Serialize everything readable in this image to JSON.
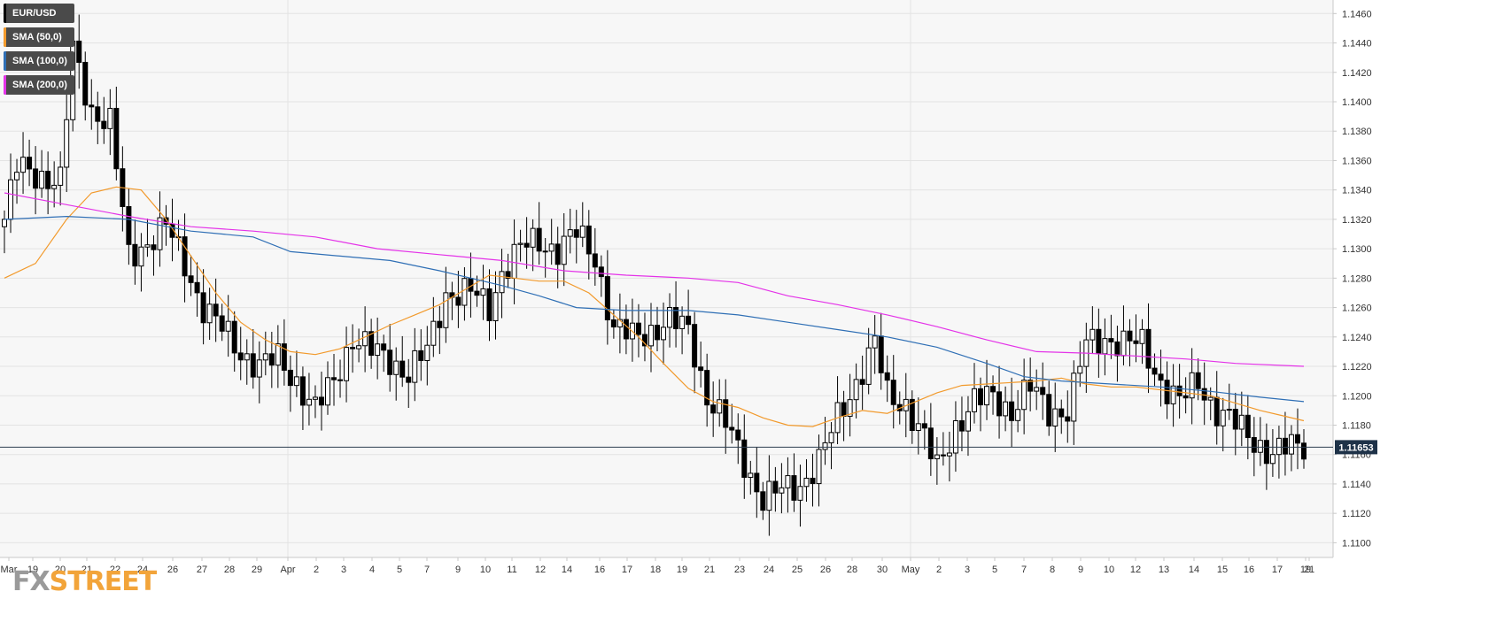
{
  "chart_data": {
    "type": "candlestick",
    "symbol": "EUR/USD",
    "title": "EUR/USD",
    "ylim": [
      1.109,
      1.1465
    ],
    "y_ticks": [
      "1.1460",
      "1.1440",
      "1.1420",
      "1.1400",
      "1.1380",
      "1.1360",
      "1.1340",
      "1.1320",
      "1.1300",
      "1.1280",
      "1.1260",
      "1.1240",
      "1.1220",
      "1.1200",
      "1.1180",
      "1.1160",
      "1.1140",
      "1.1120",
      "1.1100"
    ],
    "x_ticks": [
      "Mar",
      "19",
      "20",
      "21",
      "22",
      "24",
      "26",
      "27",
      "28",
      "29",
      "Apr",
      "2",
      "3",
      "4",
      "5",
      "7",
      "9",
      "10",
      "11",
      "12",
      "14",
      "16",
      "17",
      "18",
      "19",
      "21",
      "23",
      "24",
      "25",
      "26",
      "28",
      "30",
      "May",
      "2",
      "3",
      "5",
      "7",
      "8",
      "9",
      "10",
      "12",
      "13",
      "14",
      "15",
      "16",
      "17",
      "19",
      "21"
    ],
    "current_price": 1.1165,
    "current_price_label": "1.11653",
    "series": [
      {
        "name": "EUR/USD",
        "color": "#000000",
        "anchors": [
          [
            0,
            1.132
          ],
          [
            2,
            1.1355
          ],
          [
            6,
            1.135
          ],
          [
            9,
            1.1345
          ],
          [
            11,
            1.1435
          ],
          [
            14,
            1.1395
          ],
          [
            17,
            1.1385
          ],
          [
            20,
            1.1295
          ],
          [
            23,
            1.1305
          ],
          [
            26,
            1.1315
          ],
          [
            29,
            1.129
          ],
          [
            32,
            1.126
          ],
          [
            35,
            1.1245
          ],
          [
            38,
            1.123
          ],
          [
            41,
            1.122
          ],
          [
            44,
            1.1225
          ],
          [
            47,
            1.121
          ],
          [
            50,
            1.119
          ],
          [
            53,
            1.121
          ],
          [
            56,
            1.124
          ],
          [
            59,
            1.123
          ],
          [
            62,
            1.1225
          ],
          [
            65,
            1.1215
          ],
          [
            68,
            1.123
          ],
          [
            71,
            1.127
          ],
          [
            75,
            1.127
          ],
          [
            78,
            1.126
          ],
          [
            80,
            1.1285
          ],
          [
            83,
            1.13
          ],
          [
            86,
            1.1305
          ],
          [
            89,
            1.13
          ],
          [
            92,
            1.131
          ],
          [
            95,
            1.1295
          ],
          [
            98,
            1.1245
          ],
          [
            101,
            1.124
          ],
          [
            104,
            1.1245
          ],
          [
            107,
            1.125
          ],
          [
            110,
            1.1245
          ],
          [
            113,
            1.12
          ],
          [
            116,
            1.118
          ],
          [
            119,
            1.1155
          ],
          [
            122,
            1.113
          ],
          [
            125,
            1.1135
          ],
          [
            128,
            1.114
          ],
          [
            131,
            1.1155
          ],
          [
            134,
            1.1185
          ],
          [
            137,
            1.121
          ],
          [
            140,
            1.1235
          ],
          [
            142,
            1.12
          ],
          [
            145,
            1.1195
          ],
          [
            148,
            1.117
          ],
          [
            150,
            1.115
          ],
          [
            153,
            1.118
          ],
          [
            156,
            1.1195
          ],
          [
            159,
            1.12
          ],
          [
            162,
            1.119
          ],
          [
            165,
            1.1205
          ],
          [
            168,
            1.119
          ],
          [
            171,
            1.119
          ],
          [
            174,
            1.1235
          ],
          [
            177,
            1.124
          ],
          [
            180,
            1.1235
          ],
          [
            183,
            1.1235
          ],
          [
            186,
            1.121
          ],
          [
            189,
            1.1195
          ],
          [
            192,
            1.121
          ],
          [
            195,
            1.119
          ],
          [
            198,
            1.118
          ],
          [
            201,
            1.117
          ],
          [
            204,
            1.116
          ],
          [
            207,
            1.1165
          ],
          [
            209,
            1.1167
          ]
        ]
      },
      {
        "name": "SMA (50,0)",
        "color": "#f29a2c",
        "points": [
          [
            0,
            1.128
          ],
          [
            5,
            1.129
          ],
          [
            10,
            1.132
          ],
          [
            14,
            1.1338
          ],
          [
            18,
            1.1342
          ],
          [
            22,
            1.134
          ],
          [
            26,
            1.132
          ],
          [
            30,
            1.1295
          ],
          [
            34,
            1.127
          ],
          [
            38,
            1.125
          ],
          [
            42,
            1.1238
          ],
          [
            46,
            1.123
          ],
          [
            50,
            1.1228
          ],
          [
            54,
            1.1232
          ],
          [
            58,
            1.124
          ],
          [
            62,
            1.1248
          ],
          [
            66,
            1.1255
          ],
          [
            70,
            1.1262
          ],
          [
            74,
            1.1272
          ],
          [
            78,
            1.1282
          ],
          [
            82,
            1.128
          ],
          [
            86,
            1.1278
          ],
          [
            90,
            1.1278
          ],
          [
            94,
            1.127
          ],
          [
            98,
            1.1255
          ],
          [
            102,
            1.124
          ],
          [
            106,
            1.1222
          ],
          [
            110,
            1.1205
          ],
          [
            114,
            1.1196
          ],
          [
            118,
            1.1192
          ],
          [
            122,
            1.1185
          ],
          [
            126,
            1.118
          ],
          [
            130,
            1.1179
          ],
          [
            134,
            1.1185
          ],
          [
            138,
            1.119
          ],
          [
            142,
            1.1188
          ],
          [
            146,
            1.1195
          ],
          [
            150,
            1.1202
          ],
          [
            154,
            1.1207
          ],
          [
            158,
            1.1208
          ],
          [
            162,
            1.1209
          ],
          [
            166,
            1.121
          ],
          [
            170,
            1.1212
          ],
          [
            174,
            1.1208
          ],
          [
            178,
            1.1206
          ],
          [
            182,
            1.1206
          ],
          [
            186,
            1.1204
          ],
          [
            190,
            1.1202
          ],
          [
            194,
            1.12
          ],
          [
            198,
            1.1195
          ],
          [
            202,
            1.119
          ],
          [
            206,
            1.1186
          ],
          [
            209,
            1.1183
          ]
        ]
      },
      {
        "name": "SMA (100,0)",
        "color": "#2f6fb5",
        "points": [
          [
            0,
            1.132
          ],
          [
            10,
            1.1322
          ],
          [
            20,
            1.132
          ],
          [
            30,
            1.1312
          ],
          [
            40,
            1.1308
          ],
          [
            46,
            1.1298
          ],
          [
            54,
            1.1295
          ],
          [
            62,
            1.1292
          ],
          [
            70,
            1.1285
          ],
          [
            80,
            1.1275
          ],
          [
            86,
            1.1268
          ],
          [
            92,
            1.126
          ],
          [
            100,
            1.1258
          ],
          [
            110,
            1.1258
          ],
          [
            118,
            1.1255
          ],
          [
            126,
            1.125
          ],
          [
            134,
            1.1245
          ],
          [
            142,
            1.124
          ],
          [
            150,
            1.1233
          ],
          [
            158,
            1.1222
          ],
          [
            164,
            1.1213
          ],
          [
            170,
            1.121
          ],
          [
            178,
            1.1208
          ],
          [
            186,
            1.1206
          ],
          [
            194,
            1.1203
          ],
          [
            202,
            1.1199
          ],
          [
            209,
            1.1196
          ]
        ]
      },
      {
        "name": "SMA (200,0)",
        "color": "#e433e8",
        "points": [
          [
            0,
            1.1338
          ],
          [
            10,
            1.133
          ],
          [
            20,
            1.1322
          ],
          [
            30,
            1.1315
          ],
          [
            40,
            1.1312
          ],
          [
            50,
            1.1308
          ],
          [
            60,
            1.13
          ],
          [
            70,
            1.1296
          ],
          [
            80,
            1.1292
          ],
          [
            90,
            1.1285
          ],
          [
            100,
            1.1282
          ],
          [
            110,
            1.128
          ],
          [
            118,
            1.1277
          ],
          [
            126,
            1.1268
          ],
          [
            134,
            1.1262
          ],
          [
            142,
            1.1255
          ],
          [
            150,
            1.1247
          ],
          [
            158,
            1.1238
          ],
          [
            166,
            1.123
          ],
          [
            174,
            1.1229
          ],
          [
            182,
            1.1227
          ],
          [
            190,
            1.1225
          ],
          [
            198,
            1.1222
          ],
          [
            209,
            1.122
          ]
        ]
      }
    ],
    "legend": [
      {
        "label": "EUR/USD",
        "color": "#000000"
      },
      {
        "label": "SMA (50,0)",
        "color": "#f29a2c"
      },
      {
        "label": "SMA (100,0)",
        "color": "#2f6fb5"
      },
      {
        "label": "SMA (200,0)",
        "color": "#e433e8"
      }
    ],
    "grid": true,
    "legend_placement": "top-left"
  },
  "watermark": {
    "part1": "FX",
    "part2": "STREET"
  },
  "colors": {
    "background": "#f7f7f7",
    "grid": "#e3e3e3",
    "axis": "#c8c8c8",
    "price_line": "#2c3e50",
    "price_tag_bg": "#1e3248"
  }
}
